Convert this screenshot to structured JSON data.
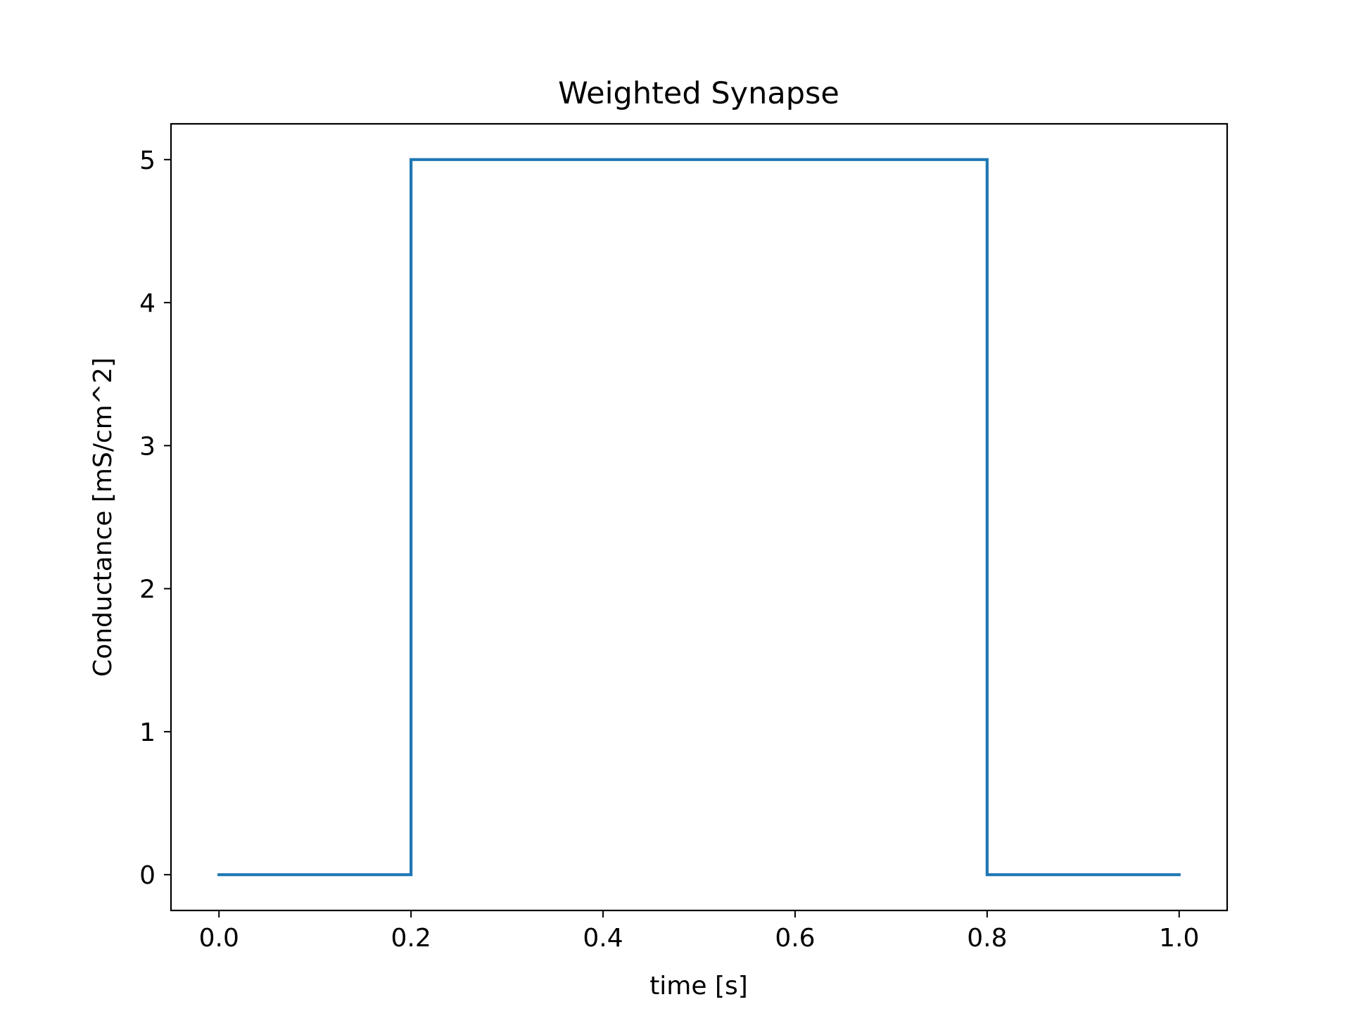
{
  "chart_data": {
    "type": "line",
    "title": "Weighted Synapse",
    "xlabel": "time [s]",
    "ylabel": "Conductance [mS/cm^2]",
    "xlim": [
      -0.05,
      1.05
    ],
    "ylim": [
      -0.25,
      5.25
    ],
    "x_ticks": [
      "0.0",
      "0.2",
      "0.4",
      "0.6",
      "0.8",
      "1.0"
    ],
    "y_ticks": [
      "0",
      "1",
      "2",
      "3",
      "4",
      "5"
    ],
    "grid": false,
    "legend": "none",
    "line_color": "#1f77b4",
    "series": [
      {
        "x": [
          0.0,
          0.2,
          0.2,
          0.8,
          0.8,
          1.0
        ],
        "y": [
          0,
          0,
          5,
          5,
          0,
          0
        ]
      }
    ]
  }
}
